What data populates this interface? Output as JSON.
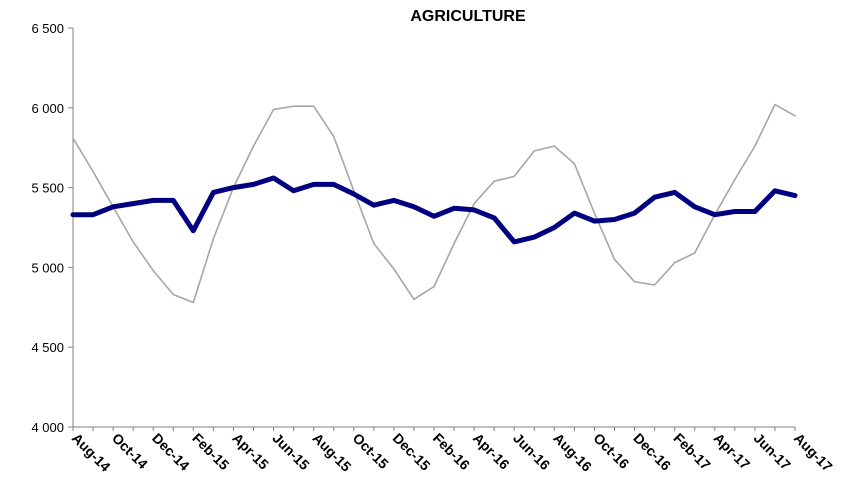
{
  "chart_data": {
    "type": "line",
    "title": "AGRICULTURE",
    "xlabel": "",
    "ylabel": "",
    "ylim": [
      4000,
      6500
    ],
    "yticks": [
      4000,
      4500,
      5000,
      5500,
      6000,
      6500
    ],
    "ytick_labels": [
      "4 000",
      "4 500",
      "5 000",
      "5 500",
      "6 000",
      "6 500"
    ],
    "x": [
      "Aug-14",
      "Sep-14",
      "Oct-14",
      "Nov-14",
      "Dec-14",
      "Jan-15",
      "Feb-15",
      "Mar-15",
      "Apr-15",
      "May-15",
      "Jun-15",
      "Jul-15",
      "Aug-15",
      "Sep-15",
      "Oct-15",
      "Nov-15",
      "Dec-15",
      "Jan-16",
      "Feb-16",
      "Mar-16",
      "Apr-16",
      "May-16",
      "Jun-16",
      "Jul-16",
      "Aug-16",
      "Sep-16",
      "Oct-16",
      "Nov-16",
      "Dec-16",
      "Jan-17",
      "Feb-17",
      "Mar-17",
      "Apr-17",
      "May-17",
      "Jun-17",
      "Jul-17",
      "Aug-17"
    ],
    "xtick_labels": [
      "Aug-14",
      "Oct-14",
      "Dec-14",
      "Feb-15",
      "Apr-15",
      "Jun-15",
      "Aug-15",
      "Oct-15",
      "Dec-15",
      "Feb-16",
      "Apr-16",
      "Jun-16",
      "Aug-16",
      "Oct-16",
      "Dec-16",
      "Feb-17",
      "Apr-17",
      "Jun-17",
      "Aug-17"
    ],
    "grid": false,
    "legend": "none",
    "series": [
      {
        "color": "#a6a6a6",
        "style": "thin",
        "values": [
          5810,
          5600,
          5380,
          5160,
          4980,
          4830,
          4780,
          5180,
          5500,
          5760,
          5990,
          6010,
          6010,
          5820,
          5480,
          5150,
          4990,
          4800,
          4880,
          5150,
          5400,
          5540,
          5570,
          5730,
          5760,
          5650,
          5340,
          5050,
          4910,
          4890,
          5030,
          5090,
          5330,
          5550,
          5760,
          6020,
          5950
        ]
      },
      {
        "color": "#000080",
        "style": "thick",
        "values": [
          5330,
          5330,
          5380,
          5400,
          5420,
          5420,
          5230,
          5470,
          5500,
          5520,
          5560,
          5480,
          5520,
          5520,
          5460,
          5390,
          5420,
          5380,
          5320,
          5370,
          5360,
          5310,
          5160,
          5190,
          5250,
          5340,
          5290,
          5300,
          5340,
          5440,
          5470,
          5380,
          5330,
          5350,
          5350,
          5480,
          5450
        ]
      }
    ]
  }
}
